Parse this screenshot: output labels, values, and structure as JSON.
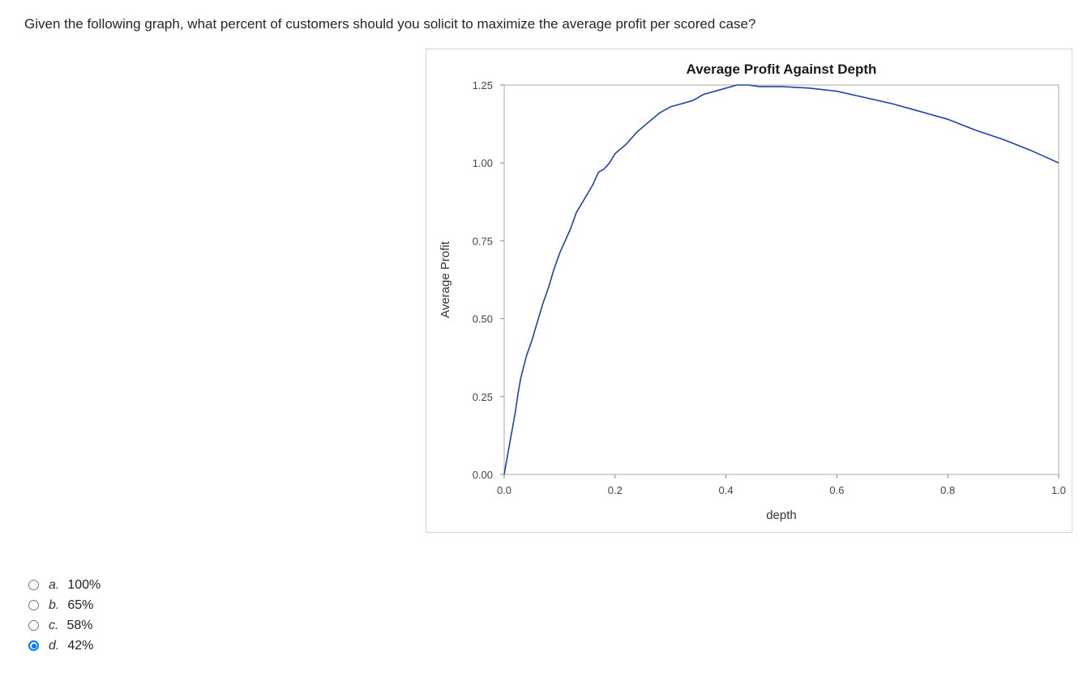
{
  "question": {
    "text": "Given the following graph, what percent of customers should you solicit to maximize the average profit per scored case?"
  },
  "chart_data": {
    "type": "line",
    "title": "Average Profit Against Depth",
    "xlabel": "depth",
    "ylabel": "Average Profit",
    "xlim": [
      0,
      1
    ],
    "ylim": [
      0,
      1.25
    ],
    "x_ticks": [
      "0.0",
      "0.2",
      "0.4",
      "0.6",
      "0.8",
      "1.0"
    ],
    "y_ticks": [
      "0.00",
      "0.25",
      "0.50",
      "0.75",
      "1.00",
      "1.25"
    ],
    "grid": false,
    "line_color": "#1a45a3",
    "series": [
      {
        "name": "Average Profit",
        "x": [
          0,
          0.005,
          0.01,
          0.015,
          0.02,
          0.025,
          0.03,
          0.04,
          0.05,
          0.06,
          0.07,
          0.08,
          0.09,
          0.1,
          0.11,
          0.12,
          0.13,
          0.14,
          0.15,
          0.16,
          0.17,
          0.18,
          0.19,
          0.2,
          0.22,
          0.24,
          0.26,
          0.28,
          0.3,
          0.32,
          0.34,
          0.36,
          0.38,
          0.4,
          0.42,
          0.44,
          0.46,
          0.5,
          0.55,
          0.6,
          0.65,
          0.7,
          0.75,
          0.8,
          0.85,
          0.9,
          0.95,
          1.0
        ],
        "y": [
          0.0,
          0.05,
          0.1,
          0.15,
          0.2,
          0.26,
          0.31,
          0.38,
          0.43,
          0.49,
          0.55,
          0.6,
          0.66,
          0.71,
          0.75,
          0.79,
          0.84,
          0.87,
          0.9,
          0.93,
          0.97,
          0.98,
          1.0,
          1.03,
          1.06,
          1.1,
          1.13,
          1.16,
          1.18,
          1.19,
          1.2,
          1.22,
          1.23,
          1.24,
          1.25,
          1.25,
          1.245,
          1.245,
          1.24,
          1.23,
          1.21,
          1.19,
          1.165,
          1.14,
          1.105,
          1.075,
          1.04,
          1.0
        ]
      }
    ]
  },
  "options": [
    {
      "letter": "a.",
      "text": "100%",
      "checked": false
    },
    {
      "letter": "b.",
      "text": "65%",
      "checked": false
    },
    {
      "letter": "c.",
      "text": "58%",
      "checked": false
    },
    {
      "letter": "d.",
      "text": "42%",
      "checked": true
    }
  ]
}
